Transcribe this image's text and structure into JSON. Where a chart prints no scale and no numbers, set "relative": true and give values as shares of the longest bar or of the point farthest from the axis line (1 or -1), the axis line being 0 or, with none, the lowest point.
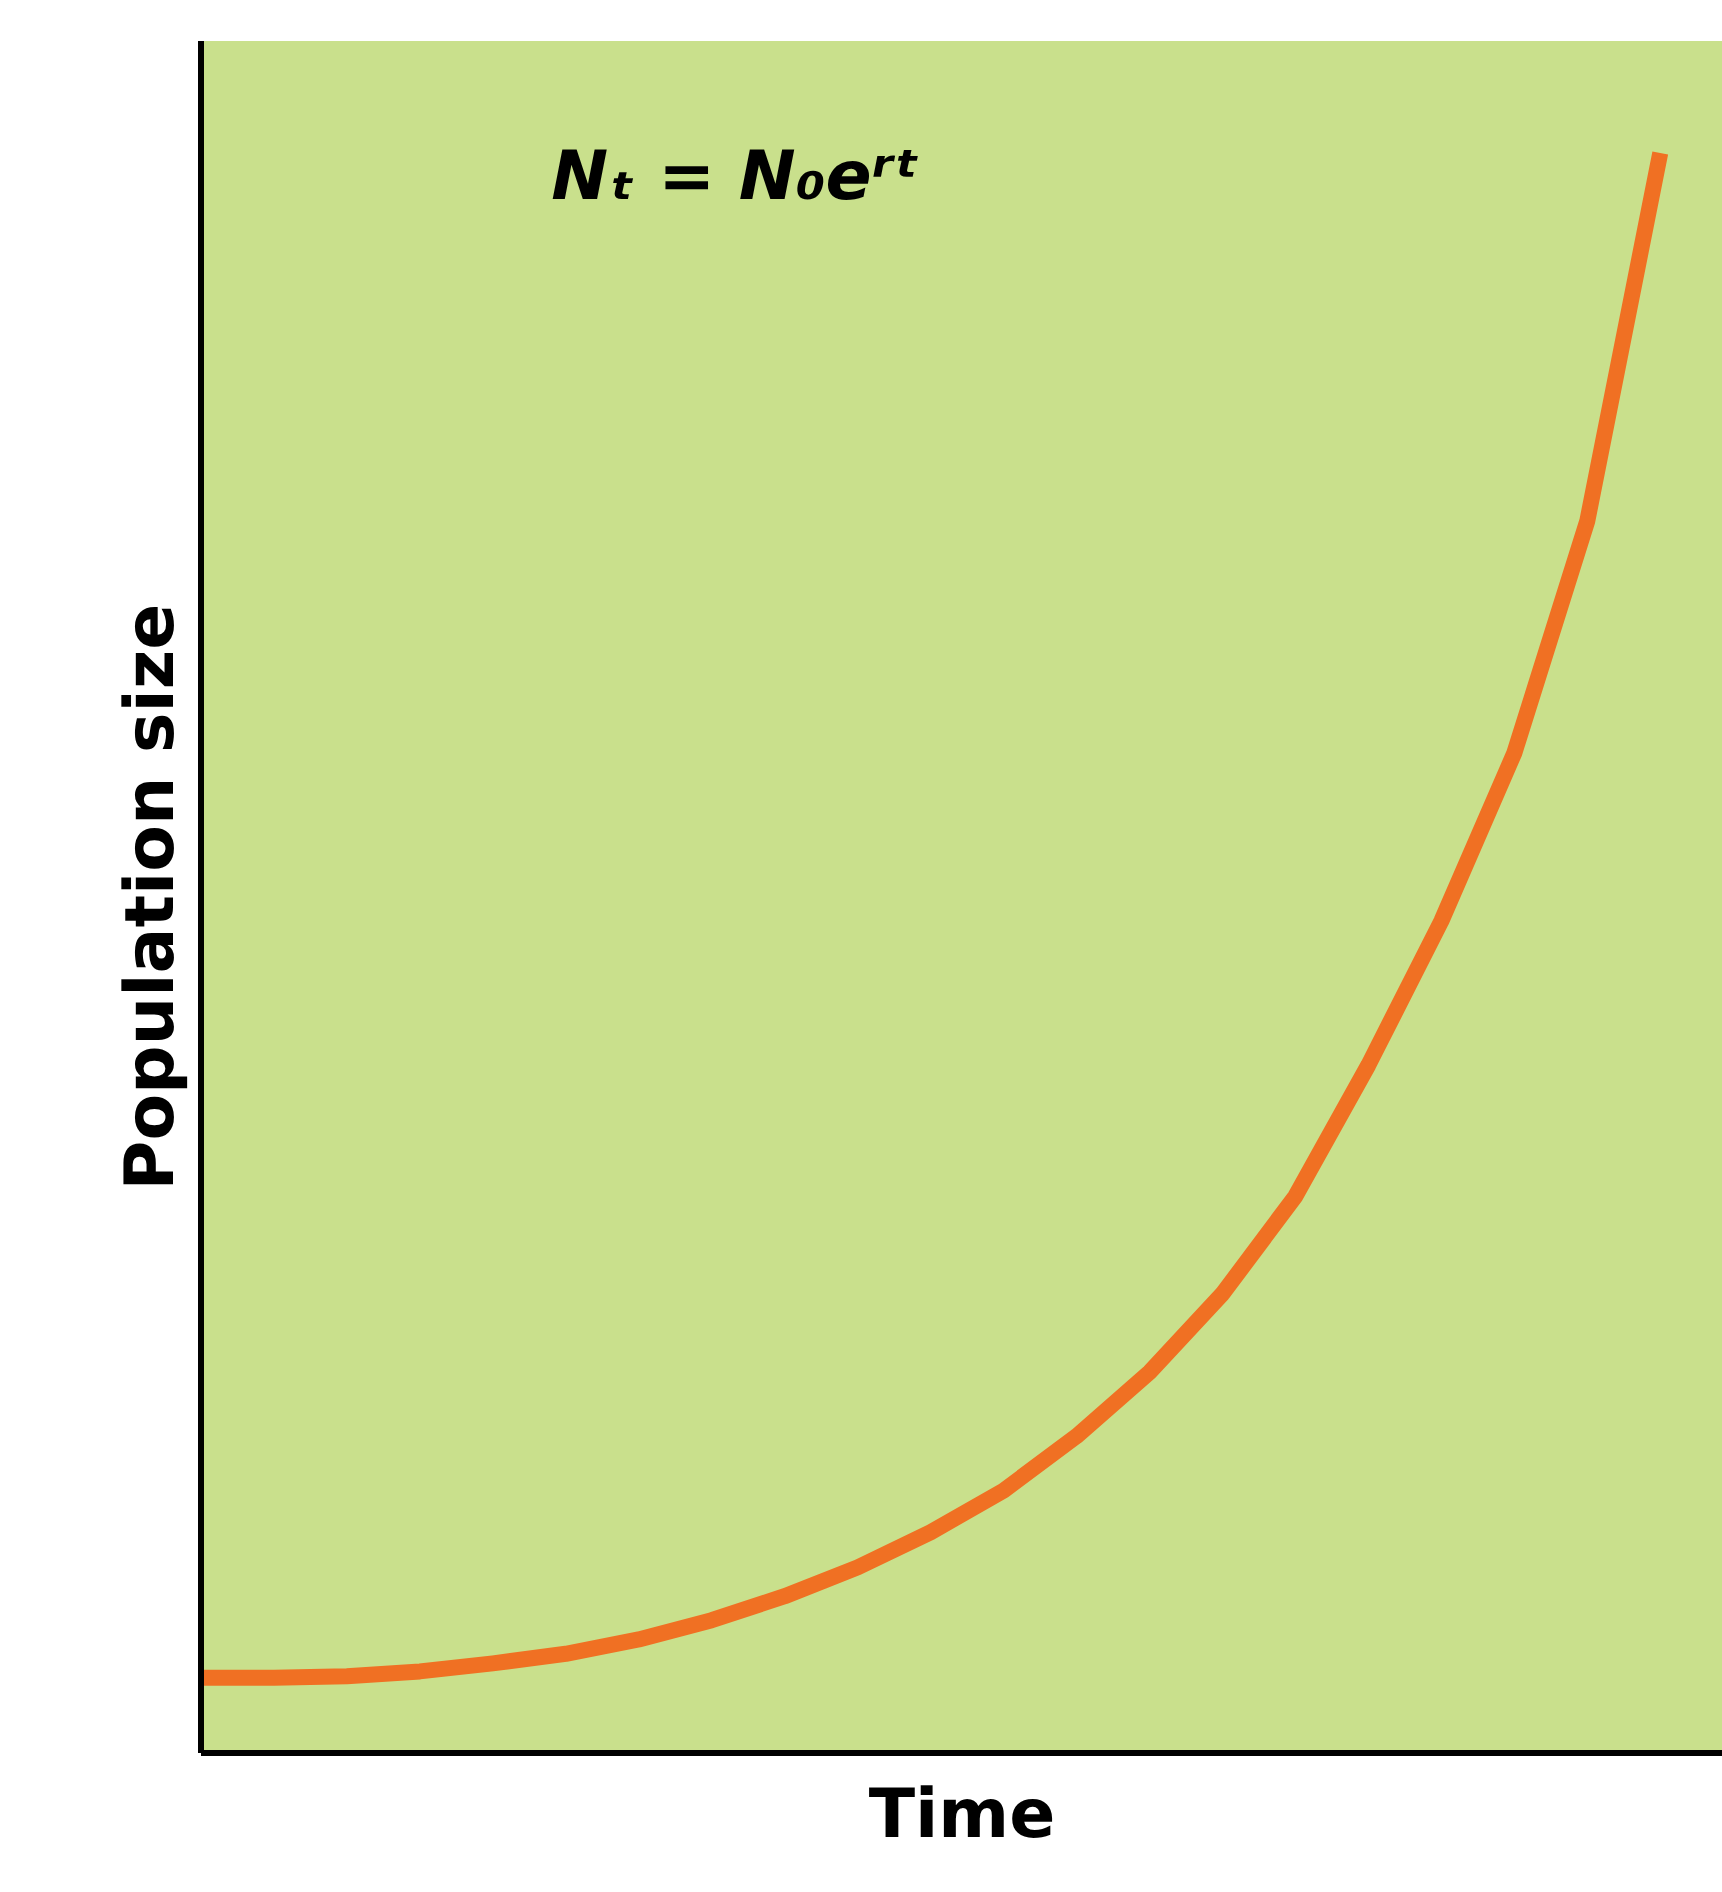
{
  "chart_data": {
    "type": "line",
    "relative": true,
    "xlabel": "Time",
    "ylabel": "Population size",
    "annotations": [
      "Nₜ = N₀eʳᵗ"
    ],
    "categories": [
      null,
      null,
      null,
      null,
      null,
      null,
      null,
      null,
      null,
      null,
      null,
      null,
      null,
      null,
      null,
      null,
      null,
      null,
      null,
      null,
      null
    ],
    "series": [
      {
        "color": "#f07023",
        "values": [
          0.047,
          0.047,
          0.048,
          0.051,
          0.056,
          0.062,
          0.071,
          0.083,
          0.098,
          0.116,
          0.138,
          0.164,
          0.198,
          0.238,
          0.287,
          0.348,
          0.43,
          0.52,
          0.625,
          0.77,
          1.0
        ]
      }
    ],
    "grid": false
  }
}
